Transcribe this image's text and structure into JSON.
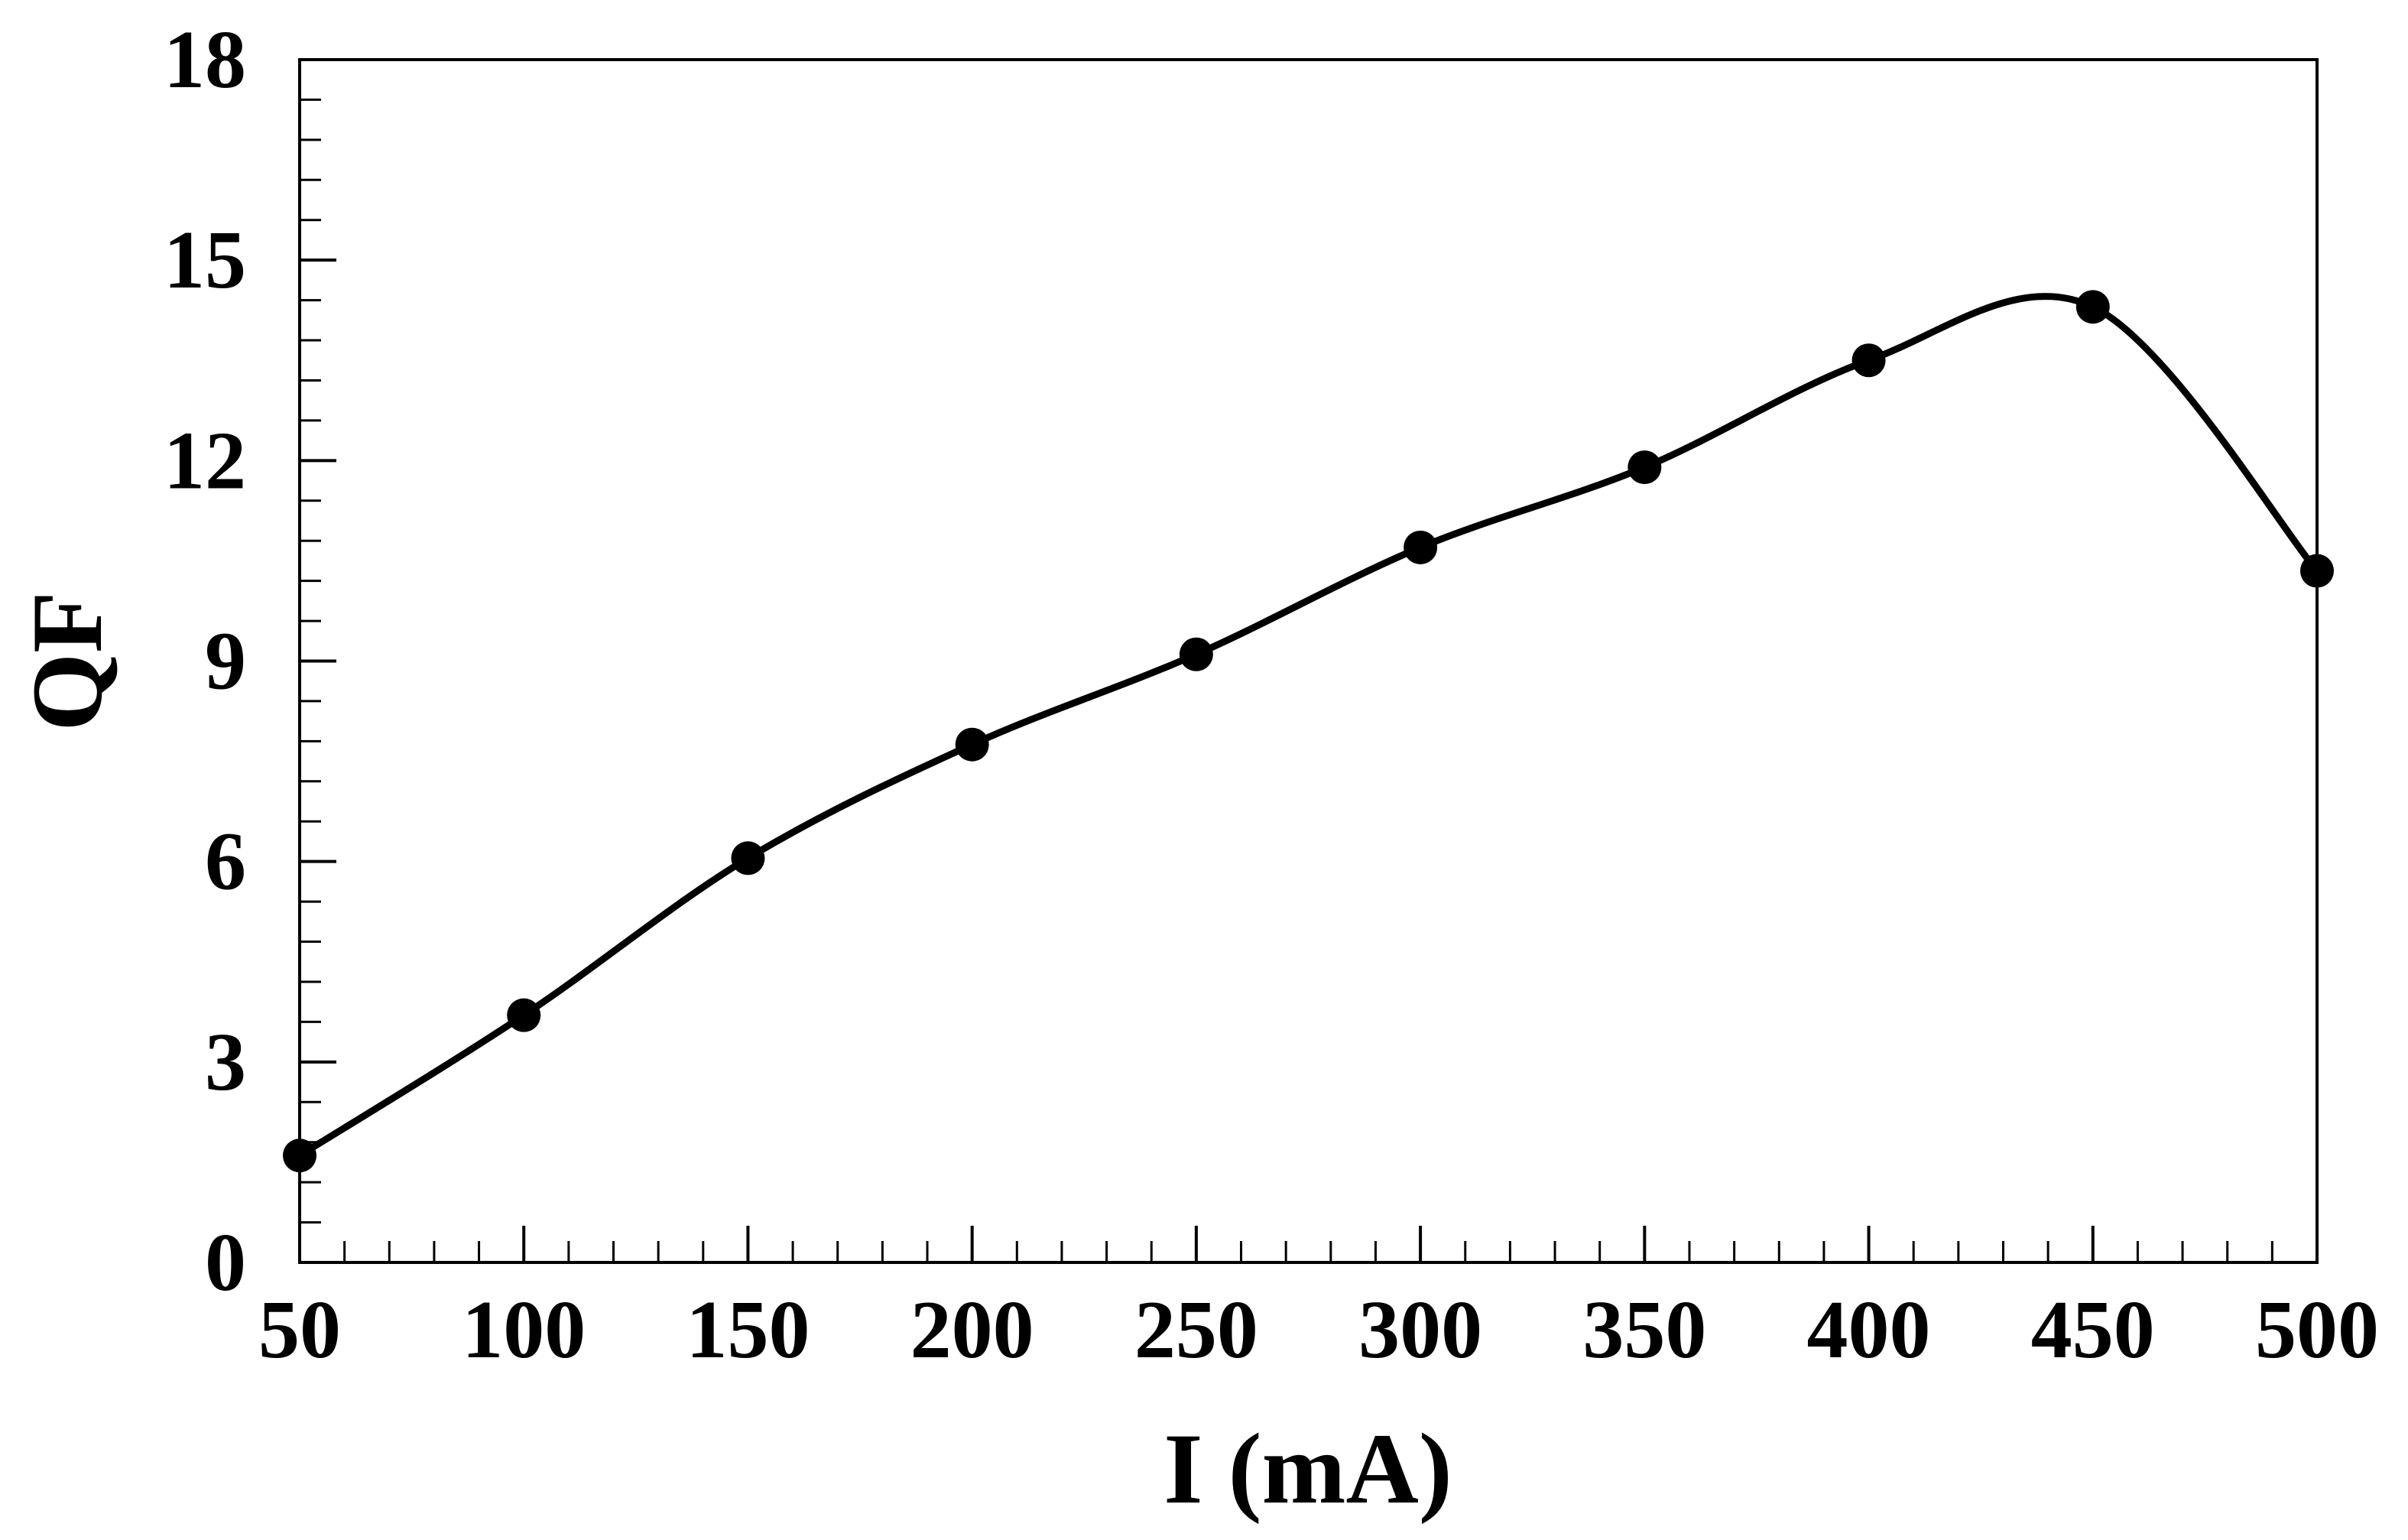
{
  "chart_data": {
    "type": "line",
    "title": "",
    "xlabel": "I (mA)",
    "ylabel": "QF",
    "xlim": [
      50,
      500
    ],
    "ylim": [
      0,
      18
    ],
    "xticks": [
      50,
      100,
      150,
      200,
      250,
      300,
      350,
      400,
      450,
      500
    ],
    "yticks": [
      0,
      3,
      6,
      9,
      12,
      15,
      18
    ],
    "x_minor_step": 10,
    "y_minor_step": 0.6,
    "grid": false,
    "legend": "none",
    "line_style": "smooth",
    "marker": "filled-circle",
    "color": "#000000",
    "series": [
      {
        "x": [
          50,
          100,
          150,
          200,
          250,
          300,
          350,
          400,
          450,
          500
        ],
        "y": [
          1.6,
          3.7,
          6.05,
          7.75,
          9.1,
          10.7,
          11.9,
          13.5,
          14.3,
          10.35
        ]
      }
    ]
  }
}
